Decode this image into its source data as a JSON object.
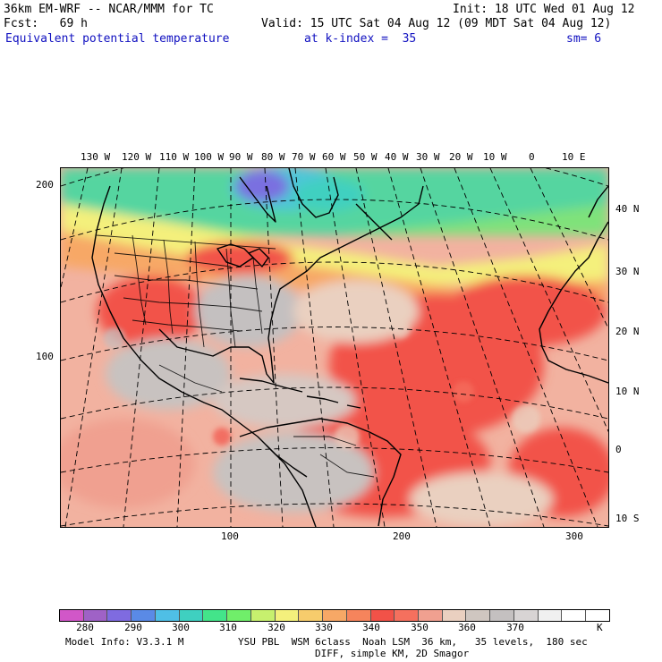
{
  "header": {
    "model": "36km EM-WRF -- NCAR/MMM for TC",
    "init": "Init: 18 UTC Wed 01 Aug 12",
    "fcst": "Fcst:   69 h",
    "valid": "Valid: 15 UTC Sat 04 Aug 12 (09 MDT Sat 04 Aug 12)",
    "field": "Equivalent potential temperature",
    "level": "at k-index =  35",
    "smooth": "sm= 6"
  },
  "map": {
    "top_lon_labels": [
      "130 W",
      "120 W",
      "110 W",
      "100 W",
      "90 W",
      "80 W",
      "70 W",
      "60 W",
      "50 W",
      "40 W",
      "30 W",
      "20 W",
      "10 W",
      "0",
      "10 E"
    ],
    "right_lat_labels": [
      "40 N",
      "30 N",
      "20 N",
      "10 N",
      "0",
      "10 S"
    ],
    "left_grid_labels": [
      "200",
      "100"
    ],
    "bottom_grid_labels": [
      "100",
      "200",
      "300"
    ]
  },
  "colorbar": {
    "colors": [
      "#d157c8",
      "#9f62c6",
      "#7f6be0",
      "#5a8ae6",
      "#4fbfe6",
      "#3fd0c0",
      "#43e48a",
      "#70ee6a",
      "#c7f06e",
      "#f4f07c",
      "#f7cc6c",
      "#f7a866",
      "#f6845c",
      "#f25248",
      "#f5705e",
      "#f0a090",
      "#ead0c0",
      "#cfc6c0",
      "#c4c0c0",
      "#d8d4d4",
      "#f0f0f0",
      "#ffffff",
      "#ffffff"
    ],
    "labels": [
      "280",
      "290",
      "300",
      "310",
      "320",
      "330",
      "340",
      "350",
      "360",
      "370"
    ],
    "unit": "K"
  },
  "footer": {
    "line1_left": "Model Info: V3.3.1 M",
    "line1_right": "YSU PBL  WSM 6class  Noah LSM  36 km,   35 levels,  180 sec",
    "line2": "DIFF, simple KM, 2D Smagor"
  }
}
